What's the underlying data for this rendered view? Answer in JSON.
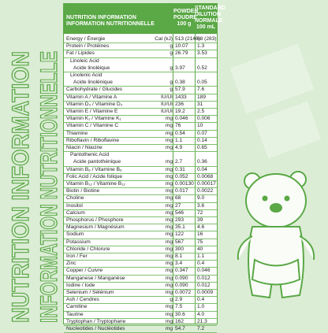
{
  "side_text": [
    "NUTRITION INFORMATION",
    "INFORMATION NUTRITIONNELLE"
  ],
  "table": {
    "header": {
      "label": [
        "NUTRITION INFORMATION",
        "INFORMATION NUTRITIONNELLE"
      ],
      "powder": [
        "POWDER",
        "POUDRE",
        "100 g"
      ],
      "standard": [
        "STANDARD",
        "DILUTION",
        "NORMALE",
        "100 mL"
      ]
    },
    "rows": [
      {
        "label": "Energy / Énergie",
        "unit": "Cal (kJ)",
        "powder": "513 (2146)",
        "standard": "68 (283)"
      },
      {
        "label": "Protein / Protéines",
        "unit": "g",
        "powder": "10.07",
        "standard": "1.3"
      },
      {
        "label": "Fat / Lipides",
        "unit": "g",
        "powder": "26.79",
        "standard": "3.53"
      },
      {
        "label": "Linoleic Acid",
        "label_2": "Acide linoléique",
        "unit": "g",
        "powder": "3.97",
        "standard": "0.52"
      },
      {
        "label": "Linolenic Acid",
        "label_2": "Acide linolénique",
        "unit": "g",
        "powder": "0.38",
        "standard": "0.05"
      },
      {
        "label": "Carbohydrate / Glucides",
        "unit": "g",
        "powder": "57.9",
        "standard": "7.6"
      },
      {
        "label": "Vitamin A / Vitamine A",
        "unit": "IU/UI",
        "powder": "1433",
        "standard": "189"
      },
      {
        "label": "Vitamin D₃ / Vitamine D₃",
        "unit": "IU/UI",
        "powder": "236",
        "standard": "31"
      },
      {
        "label": "Vitamin E / Vitamine E",
        "unit": "IU/UI",
        "powder": "19.2",
        "standard": "2.5"
      },
      {
        "label": "Vitamin K₁ / Vitamine K₁",
        "unit": "mg",
        "powder": "0.046",
        "standard": "0.006"
      },
      {
        "label": "Vitamin C / Vitamine C",
        "unit": "mg",
        "powder": "76",
        "standard": "10"
      },
      {
        "label": "Thiamine",
        "unit": "mg",
        "powder": "0.54",
        "standard": "0.07"
      },
      {
        "label": "Riboflavin / Riboflavine",
        "unit": "mg",
        "powder": "1.1",
        "standard": "0.14"
      },
      {
        "label": "Niacin / Niacine",
        "unit": "mg",
        "powder": "4.9",
        "standard": "0.65"
      },
      {
        "label": "Pantothenic Acid",
        "label_2": "Acide pantothénique",
        "unit": "mg",
        "powder": "2.7",
        "standard": "0.36"
      },
      {
        "label": "Vitamin B₆ / Vitamine B₆",
        "unit": "mg",
        "powder": "0.31",
        "standard": "0.04"
      },
      {
        "label": "Folic Acid / Acide folique",
        "unit": "mg",
        "powder": "0.052",
        "standard": "0.0068"
      },
      {
        "label": "Vitamin B₁₂ / Vitamine B₁₂",
        "unit": "mg",
        "powder": "0.00130",
        "standard": "0.00017"
      },
      {
        "label": "Biotin / Biotine",
        "unit": "mg",
        "powder": "0.017",
        "standard": "0.0022"
      },
      {
        "label": "Choline",
        "unit": "mg",
        "powder": "68",
        "standard": "9.0"
      },
      {
        "label": "Inositol",
        "unit": "mg",
        "powder": "27",
        "standard": "3.6"
      },
      {
        "label": "Calcium",
        "unit": "mg",
        "powder": "546",
        "standard": "72"
      },
      {
        "label": "Phosphorus / Phosphore",
        "unit": "mg",
        "powder": "293",
        "standard": "39"
      },
      {
        "label": "Magnesium / Magnésium",
        "unit": "mg",
        "powder": "35.1",
        "standard": "4.6"
      },
      {
        "label": "Sodium",
        "unit": "mg",
        "powder": "122",
        "standard": "16"
      },
      {
        "label": "Potassium",
        "unit": "mg",
        "powder": "567",
        "standard": "75"
      },
      {
        "label": "Chloride / Chlorure",
        "unit": "mg",
        "powder": "300",
        "standard": "40"
      },
      {
        "label": "Iron / Fer",
        "unit": "mg",
        "powder": "8.1",
        "standard": "1.1"
      },
      {
        "label": "Zinc",
        "unit": "mg",
        "powder": "3.4",
        "standard": "0.4"
      },
      {
        "label": "Copper / Cuivre",
        "unit": "mg",
        "powder": "0.347",
        "standard": "0.046"
      },
      {
        "label": "Manganese / Manganèse",
        "unit": "mg",
        "powder": "0.090",
        "standard": "0.012"
      },
      {
        "label": "Iodine / Iode",
        "unit": "mg",
        "powder": "0.090",
        "standard": "0.012"
      },
      {
        "label": "Selenium / Sélénium",
        "unit": "mg",
        "powder": "0.0072",
        "standard": "0.0009"
      },
      {
        "label": "Ash / Cendres",
        "unit": "g",
        "powder": "2.9",
        "standard": "0.4"
      },
      {
        "label": "Carnitine",
        "unit": "mg",
        "powder": "7.5",
        "standard": "1.0"
      },
      {
        "label": "Taurine",
        "unit": "mg",
        "powder": "30.6",
        "standard": "4.0"
      },
      {
        "label": "Tryptophan / Tryptophane",
        "unit": "mg",
        "powder": "162",
        "standard": "21.3"
      },
      {
        "label": "Nucleotides / Nucléotides",
        "unit": "mg",
        "powder": "54.7",
        "standard": "7.2"
      }
    ]
  }
}
